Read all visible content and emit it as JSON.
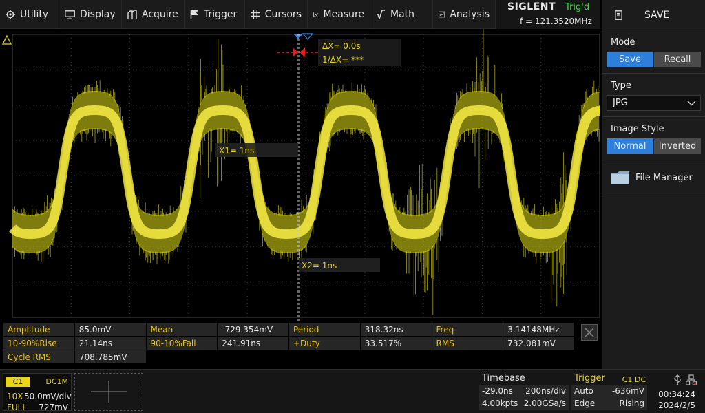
{
  "menu": [
    {
      "label": "Utility",
      "icon": "gear-icon"
    },
    {
      "label": "Display",
      "icon": "monitor-icon"
    },
    {
      "label": "Acquire",
      "icon": "acquire-icon"
    },
    {
      "label": "Trigger",
      "icon": "flag-icon"
    },
    {
      "label": "Cursors",
      "icon": "crosshair-icon"
    },
    {
      "label": "Measure",
      "icon": "measure-icon"
    },
    {
      "label": "Math",
      "icon": "math-icon"
    },
    {
      "label": "Analysis",
      "icon": "analysis-icon"
    }
  ],
  "brand": {
    "name": "SIGLENT",
    "status": "Trig'd",
    "frequency": "f = 121.3520MHz"
  },
  "panel": {
    "title": "SAVE",
    "mode": {
      "title": "Mode",
      "options": [
        "Save",
        "Recall"
      ],
      "selected": "Save"
    },
    "type": {
      "title": "Type",
      "value": "JPG"
    },
    "style": {
      "title": "Image Style",
      "options": [
        "Normal",
        "Inverted"
      ],
      "selected": "Normal"
    },
    "file_manager": "File Manager"
  },
  "cursors": {
    "delta": "ΔX= 0.0s",
    "inv_delta": "1/ΔX= ***",
    "x1": "X1= 1ns",
    "x2": "X2= 1ns"
  },
  "measurements": [
    [
      {
        "label": "Amplitude",
        "value": "85.0mV"
      },
      {
        "label": "Mean",
        "value": "-729.354mV"
      },
      {
        "label": "Period",
        "value": "318.32ns"
      },
      {
        "label": "Freq",
        "value": "3.14148MHz"
      }
    ],
    [
      {
        "label": "10-90%Rise",
        "value": "21.14ns"
      },
      {
        "label": "90-10%Fall",
        "value": "241.91ns"
      },
      {
        "label": "+Duty",
        "value": "33.517%"
      },
      {
        "label": "RMS",
        "value": "732.081mV"
      }
    ],
    [
      {
        "label": "Cycle RMS",
        "value": "708.785mV"
      }
    ]
  ],
  "channel": {
    "name": "C1",
    "coupling": "DC1M",
    "probe": "10X",
    "scale": "50.0mV/div",
    "bandwidth": "FULL",
    "offset": "727mV"
  },
  "timebase": {
    "title": "Timebase",
    "delay": "-29.0ns",
    "scale": "200ns/div",
    "points": "4.00kpts",
    "rate": "2.00GSa/s"
  },
  "trigger": {
    "title": "Trigger",
    "source": "C1 DC",
    "mode": "Auto",
    "level": "-636mV",
    "type": "Edge",
    "slope": "Rising"
  },
  "clock": {
    "time": "00:34:24",
    "date": "2024/2/5"
  },
  "colors": {
    "trace": "#e8e21a",
    "accent": "#2e7fd9",
    "status": "#3fd33f",
    "label": "#e8c31a"
  }
}
